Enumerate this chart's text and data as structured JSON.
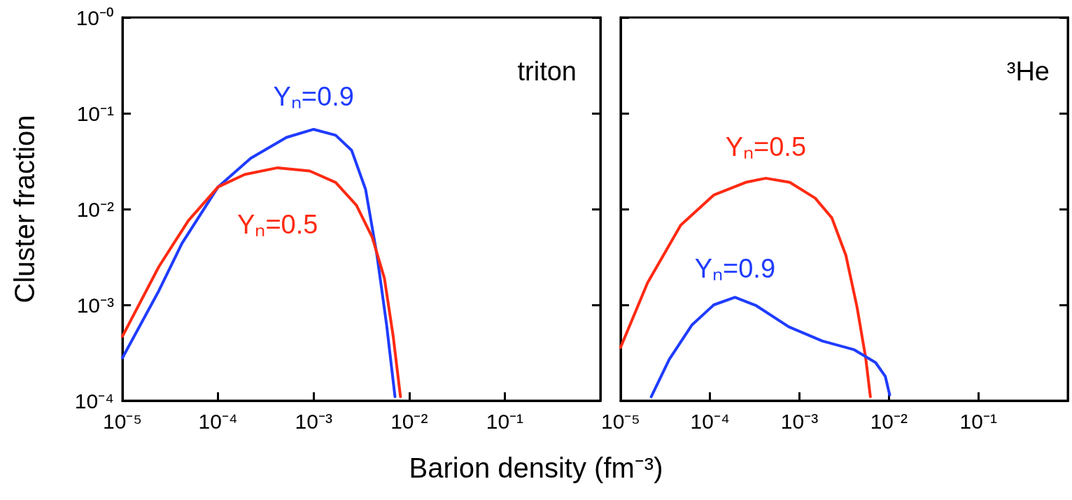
{
  "chart_data": [
    {
      "type": "line",
      "xlabel": "Barion density (fm⁻³)",
      "ylabel": "Cluster fraction",
      "log": "xy",
      "grid": false,
      "marker": "none",
      "annotations": [
        "triton"
      ],
      "xlim": [
        1e-05,
        1
      ],
      "ylim": [
        0.0001,
        1
      ],
      "xticks": [
        {
          "value": 1e-05,
          "label": "10⁻⁵"
        },
        {
          "value": 0.0001,
          "label": "10⁻⁴"
        },
        {
          "value": 0.001,
          "label": "10⁻³"
        },
        {
          "value": 0.01,
          "label": "10⁻²"
        },
        {
          "value": 0.1,
          "label": "10⁻¹"
        },
        {
          "value": 1,
          "label": null
        }
      ],
      "yticks": [
        {
          "value": 0.0001,
          "label": "10⁻⁴"
        },
        {
          "value": 0.001,
          "label": "10⁻³"
        },
        {
          "value": 0.01,
          "label": "10⁻²"
        },
        {
          "value": 0.1,
          "label": "10⁻¹"
        },
        {
          "value": 1,
          "label": "10⁻⁰"
        }
      ],
      "series": [
        {
          "name": "Yₙ=0.9",
          "color": "#1f3cff",
          "x": [
            1e-05,
            2.4e-05,
            4.2e-05,
            0.0001,
            0.00022,
            0.00052,
            0.001,
            0.0017,
            0.0025,
            0.0035,
            0.0046,
            0.0058,
            0.0071
          ],
          "values": [
            0.00028,
            0.0014,
            0.0044,
            0.017,
            0.034,
            0.056,
            0.068,
            0.059,
            0.041,
            0.016,
            0.0033,
            0.00062,
            0.00011
          ]
        },
        {
          "name": "Yₙ=0.5",
          "color": "#ff2a12",
          "x": [
            1e-05,
            2.4e-05,
            4.9e-05,
            0.0001,
            0.00019,
            0.00042,
            0.00091,
            0.0017,
            0.0028,
            0.0041,
            0.0055,
            0.0068,
            0.0081
          ],
          "values": [
            0.00047,
            0.0025,
            0.0076,
            0.017,
            0.023,
            0.027,
            0.025,
            0.019,
            0.011,
            0.0051,
            0.0019,
            0.00047,
            0.00011
          ]
        }
      ]
    },
    {
      "type": "line",
      "log": "xy",
      "grid": false,
      "marker": "none",
      "tick_labels": "x",
      "annotations": [
        "³He"
      ],
      "xlim": [
        1e-05,
        1
      ],
      "ylim": [
        0.0001,
        1
      ],
      "xticks": [
        {
          "value": 1e-05,
          "label": "10⁻⁵"
        },
        {
          "value": 0.0001,
          "label": "10⁻⁴"
        },
        {
          "value": 0.001,
          "label": "10⁻³"
        },
        {
          "value": 0.01,
          "label": "10⁻²"
        },
        {
          "value": 0.1,
          "label": "10⁻¹"
        },
        {
          "value": 1,
          "label": null
        }
      ],
      "yticks": [
        {
          "value": 0.0001,
          "label": null
        },
        {
          "value": 0.001,
          "label": null
        },
        {
          "value": 0.01,
          "label": null
        },
        {
          "value": 0.1,
          "label": null
        },
        {
          "value": 1,
          "label": null
        }
      ],
      "series": [
        {
          "name": "Yₙ=0.5",
          "color": "#ff2a12",
          "x": [
            1e-05,
            2e-05,
            4.7e-05,
            0.00011,
            0.00025,
            0.00042,
            0.00078,
            0.0015,
            0.0023,
            0.0033,
            0.0044,
            0.0055,
            0.0062
          ],
          "values": [
            0.00036,
            0.0017,
            0.0068,
            0.014,
            0.019,
            0.021,
            0.019,
            0.013,
            0.0081,
            0.0033,
            0.00095,
            0.00028,
            0.00011
          ]
        },
        {
          "name": "Yₙ=0.9",
          "color": "#1f3cff",
          "x": [
            2.2e-05,
            3.5e-05,
            6.3e-05,
            0.00011,
            0.00019,
            0.00033,
            0.00076,
            0.0018,
            0.0041,
            0.0071,
            0.0091,
            0.0102
          ],
          "values": [
            0.00011,
            0.00027,
            0.00062,
            0.001,
            0.0012,
            0.00098,
            0.00059,
            0.00042,
            0.00034,
            0.00025,
            0.00018,
            0.000115
          ]
        }
      ]
    }
  ]
}
